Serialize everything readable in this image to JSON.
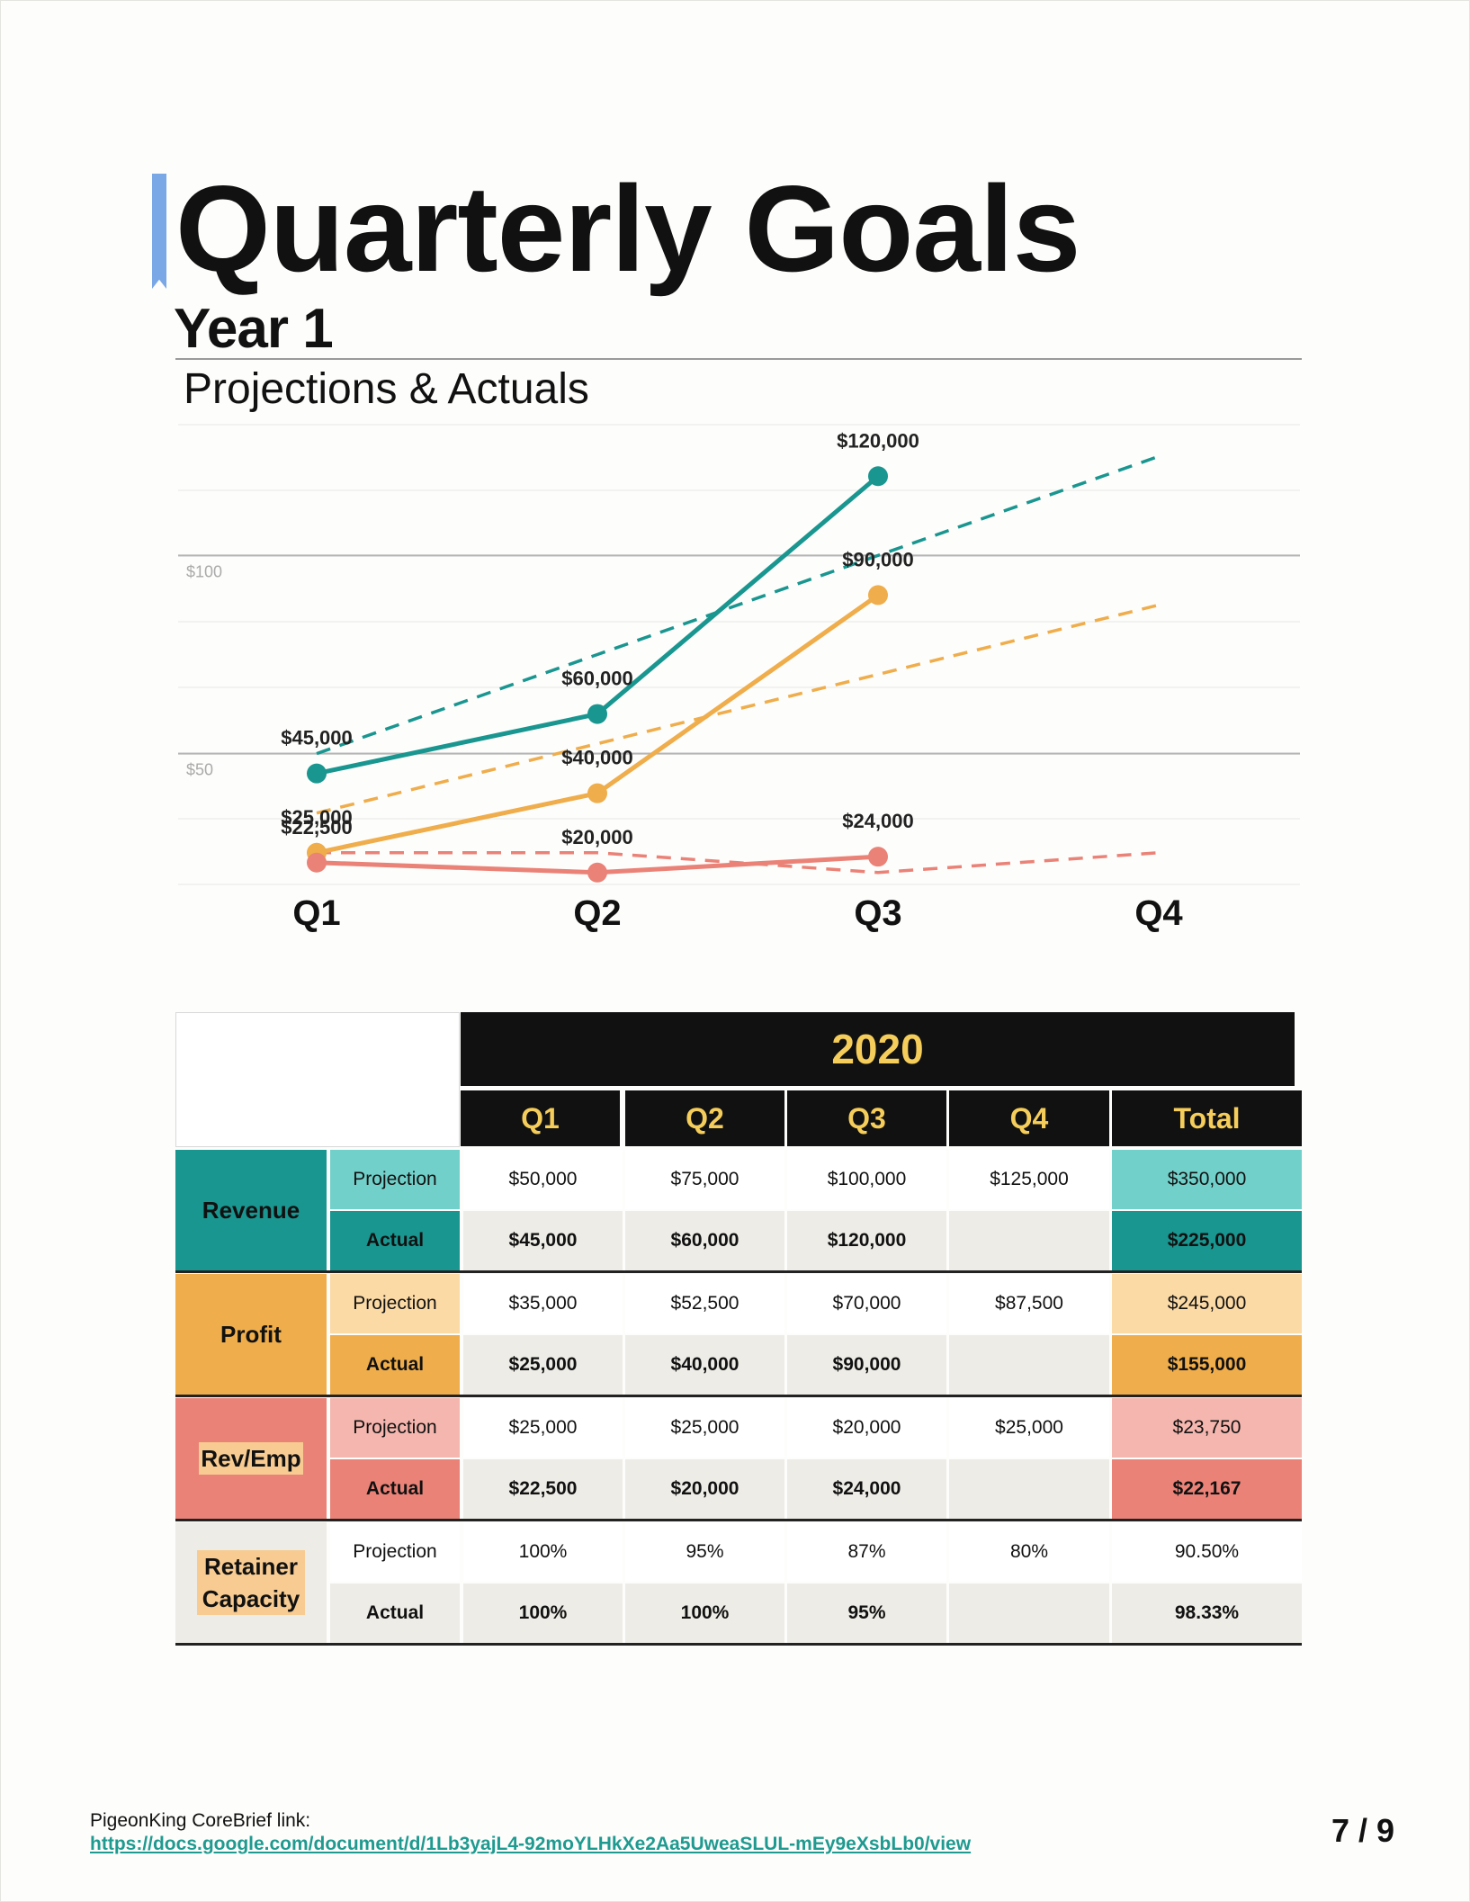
{
  "page": {
    "title": "Quarterly Goals",
    "subtitle": "Year 1",
    "section_label": "Projections & Actuals"
  },
  "chart_data": {
    "type": "line",
    "categories": [
      "Q1",
      "Q2",
      "Q3",
      "Q4"
    ],
    "y_ticks": [
      {
        "value": 50,
        "label": "$50"
      },
      {
        "value": 100,
        "label": "$100"
      }
    ],
    "ylim": [
      17,
      133
    ],
    "grid": true,
    "series": [
      {
        "key": "revenue_actual",
        "color": "#1a9690",
        "dashed": false,
        "values": [
          45,
          60,
          120,
          null
        ],
        "labels": [
          "$45,000",
          "$60,000",
          "$120,000",
          null
        ]
      },
      {
        "key": "revenue_projection",
        "color": "#1a9690",
        "dashed": true,
        "values": [
          50,
          75,
          100,
          125
        ],
        "labels": [
          null,
          null,
          null,
          null
        ]
      },
      {
        "key": "profit_actual",
        "color": "#efad4b",
        "dashed": false,
        "values": [
          25,
          40,
          90,
          null
        ],
        "labels": [
          "$25,000",
          "$40,000",
          "$90,000",
          null
        ]
      },
      {
        "key": "profit_projection",
        "color": "#efad4b",
        "dashed": true,
        "values": [
          35,
          52.5,
          70,
          87.5
        ],
        "labels": [
          null,
          null,
          null,
          null
        ]
      },
      {
        "key": "rev_emp_actual",
        "color": "#ea8277",
        "dashed": false,
        "values": [
          22.5,
          20,
          24,
          null
        ],
        "labels": [
          "$22,500",
          "$20,000",
          "$24,000",
          null
        ]
      },
      {
        "key": "rev_emp_projection",
        "color": "#ea8277",
        "dashed": true,
        "values": [
          25,
          25,
          20,
          25
        ],
        "labels": [
          null,
          null,
          null,
          null
        ]
      }
    ]
  },
  "table": {
    "year": "2020",
    "columns": [
      "Q1",
      "Q2",
      "Q3",
      "Q4",
      "Total"
    ],
    "groups": [
      {
        "name": "Revenue",
        "color": "#1a9690",
        "light": "#72d0ca",
        "highlight": false,
        "rows": [
          {
            "label": "Projection",
            "values": [
              "$50,000",
              "$75,000",
              "$100,000",
              "$125,000"
            ],
            "total": "$350,000"
          },
          {
            "label": "Actual",
            "values": [
              "$45,000",
              "$60,000",
              "$120,000",
              ""
            ],
            "total": "$225,000"
          }
        ]
      },
      {
        "name": "Profit",
        "color": "#efad4b",
        "light": "#fbdaa5",
        "highlight": false,
        "rows": [
          {
            "label": "Projection",
            "values": [
              "$35,000",
              "$52,500",
              "$70,000",
              "$87,500"
            ],
            "total": "$245,000"
          },
          {
            "label": "Actual",
            "values": [
              "$25,000",
              "$40,000",
              "$90,000",
              ""
            ],
            "total": "$155,000"
          }
        ]
      },
      {
        "name": "Rev/Emp",
        "color": "#ea8277",
        "light": "#f4b6ae",
        "highlight": true,
        "rows": [
          {
            "label": "Projection",
            "values": [
              "$25,000",
              "$25,000",
              "$20,000",
              "$25,000"
            ],
            "total": "$23,750"
          },
          {
            "label": "Actual",
            "values": [
              "$22,500",
              "$20,000",
              "$24,000",
              ""
            ],
            "total": "$22,167"
          }
        ]
      },
      {
        "name": "Retainer Capacity",
        "color": "#eeece6",
        "light": "#ffffff",
        "highlight": true,
        "rows": [
          {
            "label": "Projection",
            "values": [
              "100%",
              "95%",
              "87%",
              "80%"
            ],
            "total": "90.50%"
          },
          {
            "label": "Actual",
            "values": [
              "100%",
              "100%",
              "95%",
              ""
            ],
            "total": "98.33%"
          }
        ]
      }
    ]
  },
  "footer": {
    "label": "PigeonKing CoreBrief link:",
    "link": "https://docs.google.com/document/d/1Lb3yajL4-92moYLHkXe2Aa5UweaSLUL-mEy9eXsbLb0/view",
    "page_number": "7 / 9"
  }
}
